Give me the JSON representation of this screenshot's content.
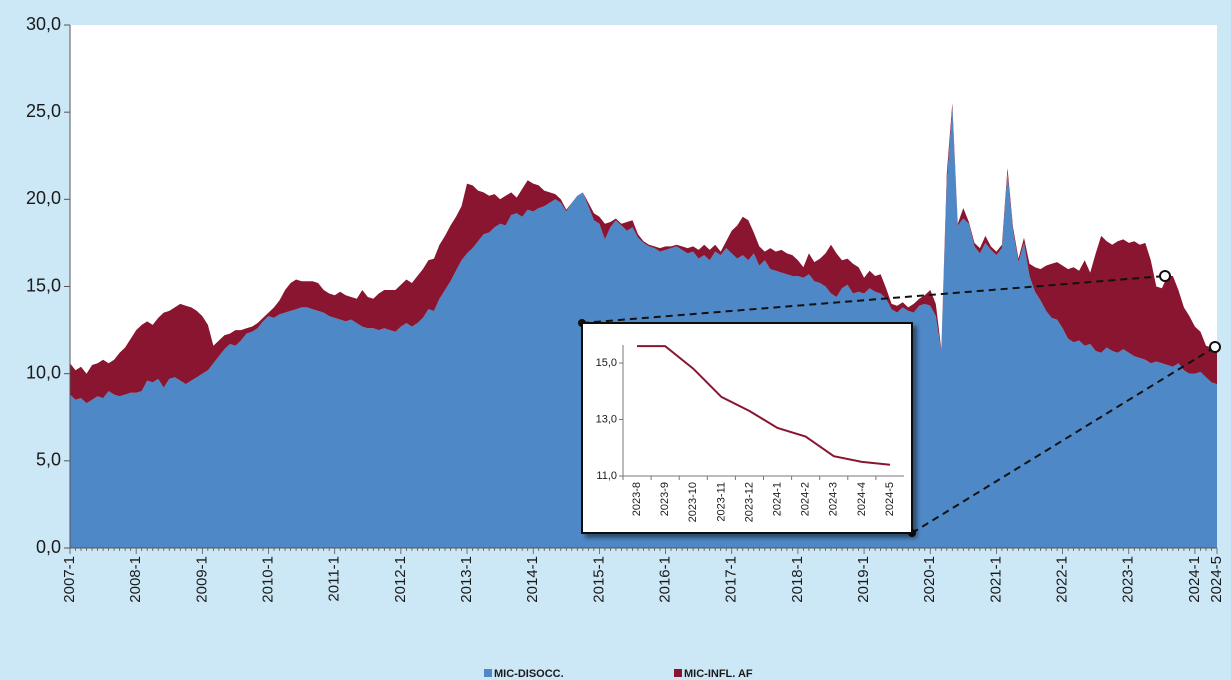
{
  "chart_data": [
    {
      "type": "stacked-area",
      "categories": [
        "2007-1",
        null,
        null,
        null,
        null,
        null,
        null,
        null,
        null,
        null,
        null,
        null,
        "2008-1",
        null,
        null,
        null,
        null,
        null,
        null,
        null,
        null,
        null,
        null,
        null,
        "2009-1",
        null,
        null,
        null,
        null,
        null,
        null,
        null,
        null,
        null,
        null,
        null,
        "2010-1",
        null,
        null,
        null,
        null,
        null,
        null,
        null,
        null,
        null,
        null,
        null,
        "2011-1",
        null,
        null,
        null,
        null,
        null,
        null,
        null,
        null,
        null,
        null,
        null,
        "2012-1",
        null,
        null,
        null,
        null,
        null,
        null,
        null,
        null,
        null,
        null,
        null,
        "2013-1",
        null,
        null,
        null,
        null,
        null,
        null,
        null,
        null,
        null,
        null,
        null,
        "2014-1",
        null,
        null,
        null,
        null,
        null,
        null,
        null,
        null,
        null,
        null,
        null,
        "2015-1",
        null,
        null,
        null,
        null,
        null,
        null,
        null,
        null,
        null,
        null,
        null,
        "2016-1",
        null,
        null,
        null,
        null,
        null,
        null,
        null,
        null,
        null,
        null,
        null,
        "2017-1",
        null,
        null,
        null,
        null,
        null,
        null,
        null,
        null,
        null,
        null,
        null,
        "2018-1",
        null,
        null,
        null,
        null,
        null,
        null,
        null,
        null,
        null,
        null,
        null,
        "2019-1",
        null,
        null,
        null,
        null,
        null,
        null,
        null,
        null,
        null,
        null,
        null,
        "2020-1",
        null,
        null,
        null,
        null,
        null,
        null,
        null,
        null,
        null,
        null,
        null,
        "2021-1",
        null,
        null,
        null,
        null,
        null,
        null,
        null,
        null,
        null,
        null,
        null,
        "2022-1",
        null,
        null,
        null,
        null,
        null,
        null,
        null,
        null,
        null,
        null,
        null,
        "2023-1",
        null,
        null,
        null,
        null,
        null,
        null,
        null,
        null,
        null,
        null,
        null,
        "2024-1",
        null,
        null,
        null,
        "2024-5"
      ],
      "series": [
        {
          "name": "MIC-DISOCC.",
          "color": "#4f88c6",
          "values": [
            8.8,
            8.5,
            8.6,
            8.3,
            8.5,
            8.7,
            8.6,
            9.0,
            8.8,
            8.7,
            8.8,
            8.9,
            8.9,
            9.0,
            9.6,
            9.5,
            9.7,
            9.2,
            9.7,
            9.8,
            9.6,
            9.4,
            9.6,
            9.8,
            10.0,
            10.2,
            10.6,
            11.0,
            11.4,
            11.7,
            11.6,
            11.9,
            12.3,
            12.4,
            12.6,
            13.0,
            13.3,
            13.2,
            13.4,
            13.5,
            13.6,
            13.7,
            13.8,
            13.8,
            13.7,
            13.6,
            13.5,
            13.3,
            13.2,
            13.1,
            13.0,
            13.1,
            12.9,
            12.7,
            12.6,
            12.6,
            12.5,
            12.6,
            12.5,
            12.4,
            12.7,
            12.9,
            12.7,
            12.9,
            13.2,
            13.7,
            13.6,
            14.3,
            14.8,
            15.3,
            15.9,
            16.5,
            16.9,
            17.2,
            17.6,
            18.0,
            18.1,
            18.4,
            18.6,
            18.5,
            19.1,
            19.2,
            19.0,
            19.4,
            19.3,
            19.5,
            19.6,
            19.8,
            20.0,
            19.8,
            19.3,
            19.8,
            20.2,
            20.4,
            19.6,
            18.8,
            18.6,
            17.7,
            18.4,
            18.8,
            18.5,
            18.2,
            18.4,
            17.8,
            17.5,
            17.3,
            17.2,
            17.0,
            17.1,
            17.2,
            17.3,
            17.1,
            16.9,
            17.0,
            16.6,
            16.8,
            16.5,
            17.0,
            16.8,
            17.2,
            16.9,
            16.6,
            16.8,
            16.5,
            16.9,
            16.2,
            16.5,
            16.0,
            15.9,
            15.8,
            15.7,
            15.6,
            15.6,
            15.5,
            15.7,
            15.3,
            15.2,
            15.0,
            14.6,
            14.4,
            14.9,
            15.1,
            14.6,
            14.7,
            14.6,
            14.9,
            14.7,
            14.6,
            14.3,
            13.7,
            13.5,
            13.8,
            13.6,
            13.5,
            13.9,
            14.0,
            13.9,
            13.3,
            11.3,
            21.0,
            25.2,
            18.5,
            18.9,
            18.6,
            17.3,
            16.9,
            17.5,
            17.1,
            16.8,
            17.2,
            21.5,
            18.2,
            16.4,
            17.5,
            15.6,
            14.7,
            14.2,
            13.6,
            13.2,
            13.1,
            12.6,
            12.0,
            11.8,
            11.9,
            11.6,
            11.7,
            11.3,
            11.2,
            11.5,
            11.3,
            11.2,
            11.4,
            11.2,
            11.0,
            10.9,
            10.8,
            10.6,
            10.7,
            10.6,
            10.5,
            10.4,
            10.6,
            10.2,
            10.0,
            10.0,
            10.1,
            9.8,
            9.5,
            9.4
          ]
        },
        {
          "name": "MIC-INFL. AF",
          "color": "#8a1530",
          "values": [
            1.8,
            1.7,
            1.8,
            1.7,
            2.0,
            1.9,
            2.2,
            1.6,
            2.0,
            2.5,
            2.7,
            3.1,
            3.6,
            3.8,
            3.4,
            3.3,
            3.5,
            4.3,
            3.9,
            4.0,
            4.4,
            4.5,
            4.2,
            3.8,
            3.3,
            2.6,
            1.0,
            0.9,
            0.8,
            0.6,
            0.9,
            0.6,
            0.3,
            0.3,
            0.3,
            0.2,
            0.2,
            0.6,
            0.8,
            1.3,
            1.6,
            1.7,
            1.5,
            1.5,
            1.6,
            1.6,
            1.3,
            1.3,
            1.3,
            1.6,
            1.5,
            1.3,
            1.4,
            2.1,
            1.8,
            1.7,
            2.1,
            2.2,
            2.3,
            2.4,
            2.4,
            2.5,
            2.5,
            2.7,
            2.8,
            2.8,
            3.0,
            3.1,
            3.1,
            3.2,
            3.1,
            3.1,
            4.0,
            3.6,
            2.9,
            2.4,
            2.1,
            1.9,
            1.4,
            1.7,
            1.3,
            0.9,
            1.6,
            1.7,
            1.6,
            1.3,
            0.9,
            0.6,
            0.3,
            0.2,
            0.1,
            0.0,
            0.0,
            0.0,
            0.2,
            0.4,
            0.4,
            0.9,
            0.3,
            0.1,
            0.1,
            0.5,
            0.4,
            0.2,
            0.1,
            0.1,
            0.1,
            0.2,
            0.2,
            0.1,
            0.1,
            0.2,
            0.3,
            0.3,
            0.5,
            0.6,
            0.6,
            0.4,
            0.2,
            0.4,
            1.3,
            1.9,
            2.2,
            2.3,
            1.2,
            1.1,
            0.5,
            1.2,
            1.1,
            1.3,
            1.2,
            1.2,
            0.9,
            0.6,
            1.2,
            1.1,
            1.4,
            1.9,
            2.8,
            2.5,
            1.6,
            1.5,
            1.7,
            1.4,
            0.9,
            1.0,
            0.9,
            1.1,
            0.6,
            0.3,
            0.4,
            0.3,
            0.2,
            0.5,
            0.4,
            0.5,
            0.9,
            0.7,
            0.1,
            0.5,
            0.3,
            0.1,
            0.6,
            0.1,
            0.2,
            0.3,
            0.4,
            0.2,
            0.2,
            0.2,
            0.3,
            0.2,
            0.2,
            0.3,
            0.7,
            1.4,
            1.8,
            2.6,
            3.1,
            3.3,
            3.6,
            4.0,
            4.3,
            4.0,
            4.9,
            4.1,
            5.6,
            6.7,
            6.1,
            6.1,
            6.4,
            6.3,
            6.3,
            6.6,
            6.5,
            6.7,
            5.9,
            4.3,
            4.3,
            5.1,
            5.2,
            4.2,
            3.6,
            3.3,
            2.7,
            2.3,
            1.8,
            2.0,
            2.0
          ]
        }
      ],
      "ylim": [
        0,
        30
      ],
      "yticks": [
        {
          "value": 0,
          "label": "0,0"
        },
        {
          "value": 5,
          "label": "5,0"
        },
        {
          "value": 10,
          "label": "10,0"
        },
        {
          "value": 15,
          "label": "15,0"
        },
        {
          "value": 20,
          "label": "20,0"
        },
        {
          "value": 25,
          "label": "25,0"
        },
        {
          "value": 30,
          "label": "30,0"
        }
      ],
      "grid": false,
      "legend": "bottom"
    },
    {
      "type": "line",
      "categories": [
        "2023-8",
        "2023-9",
        "2023-10",
        "2023-11",
        "2023-12",
        "2024-1",
        "2024-2",
        "2024-3",
        "2024-4",
        "2024-5"
      ],
      "values": [
        15.6,
        15.6,
        14.8,
        13.8,
        13.3,
        12.7,
        12.4,
        11.7,
        11.5,
        11.4
      ],
      "color": "#8a1530",
      "ylim": [
        11,
        15.7
      ],
      "yticks": [
        {
          "value": 11,
          "label": "11,0"
        },
        {
          "value": 13,
          "label": "13,0"
        },
        {
          "value": 15,
          "label": "15,0"
        }
      ],
      "grid": false
    }
  ]
}
